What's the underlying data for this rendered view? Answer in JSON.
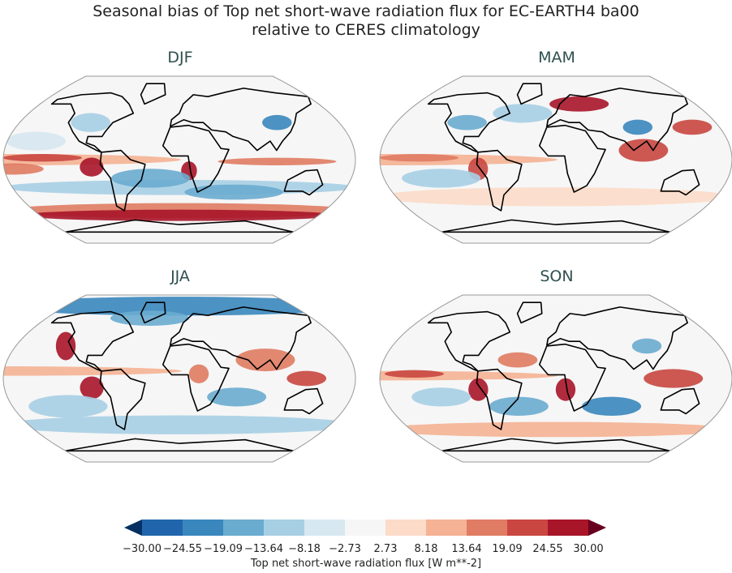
{
  "title_line1": "Seasonal bias of Top net short-wave radiation flux for EC-EARTH4 ba00",
  "title_line2": "relative to CERES climatology",
  "panels": [
    {
      "season": "DJF"
    },
    {
      "season": "MAM"
    },
    {
      "season": "JJA"
    },
    {
      "season": "SON"
    }
  ],
  "colorbar": {
    "label": "Top net short-wave radiation flux [W m**-2]",
    "ticks": [
      "−30.00",
      "−24.55",
      "−19.09",
      "−13.64",
      "−8.18",
      "−2.73",
      "2.73",
      "8.18",
      "13.64",
      "19.09",
      "24.55",
      "30.00"
    ],
    "colors": [
      "#2166ac",
      "#3a87be",
      "#6aacd0",
      "#a7cfe4",
      "#d7e8f1",
      "#f6f6f6",
      "#fcdbc9",
      "#f5b294",
      "#e07c63",
      "#c94740",
      "#a81529"
    ],
    "extend_low": "#053061",
    "extend_high": "#67001f",
    "extend": "both"
  }
}
